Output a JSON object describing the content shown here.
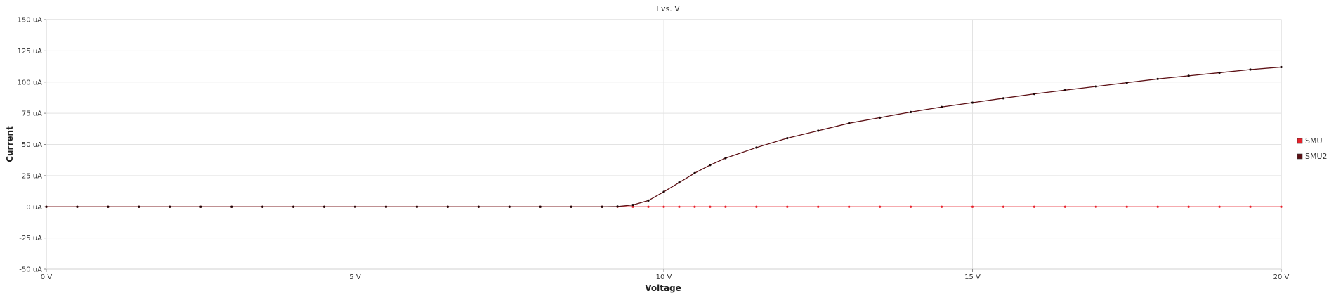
{
  "chart_data": {
    "type": "line",
    "title": "I vs. V",
    "xlabel": "Voltage",
    "ylabel": "Current",
    "xlim": [
      0,
      20
    ],
    "ylim": [
      -50,
      150
    ],
    "x_ticks": [
      {
        "value": 0,
        "label": "0 V"
      },
      {
        "value": 5,
        "label": "5 V"
      },
      {
        "value": 10,
        "label": "10 V"
      },
      {
        "value": 15,
        "label": "15 V"
      },
      {
        "value": 20,
        "label": "20 V"
      }
    ],
    "y_ticks": [
      {
        "value": 150,
        "label": "150 uA"
      },
      {
        "value": 125,
        "label": "125 uA"
      },
      {
        "value": 100,
        "label": "100 uA"
      },
      {
        "value": 75,
        "label": "75 uA"
      },
      {
        "value": 50,
        "label": "50 uA"
      },
      {
        "value": 25,
        "label": "25 uA"
      },
      {
        "value": 0,
        "label": "0 uA"
      },
      {
        "value": -25,
        "label": "-25 uA"
      },
      {
        "value": -50,
        "label": "-50 uA"
      }
    ],
    "grid": true,
    "legend_position": "right",
    "x": [
      0,
      0.5,
      1,
      1.5,
      2,
      2.5,
      3,
      3.5,
      4,
      4.5,
      5,
      5.5,
      6,
      6.5,
      7,
      7.5,
      8,
      8.5,
      9,
      9.25,
      9.5,
      9.75,
      10,
      10.25,
      10.5,
      10.75,
      11,
      11.5,
      12,
      12.5,
      13,
      13.5,
      14,
      14.5,
      15,
      15.5,
      16,
      16.5,
      17,
      17.5,
      18,
      18.5,
      19,
      19.5,
      20
    ],
    "series": [
      {
        "name": "SMU",
        "color": "#e8202a",
        "values": [
          0,
          0,
          0,
          0,
          0,
          0,
          0,
          0,
          0,
          0,
          0,
          0,
          0,
          0,
          0,
          0,
          0,
          0,
          0,
          0,
          0,
          0,
          0,
          0,
          0,
          0,
          0,
          0,
          0,
          0,
          0,
          0,
          0,
          0,
          0,
          0,
          0,
          0,
          0,
          0,
          0,
          0,
          0,
          0,
          0
        ]
      },
      {
        "name": "SMU2",
        "color": "#5c0f14",
        "values": [
          0,
          0,
          0,
          0,
          0,
          0,
          0,
          0,
          0,
          0,
          0,
          0,
          0,
          0,
          0,
          0,
          0,
          0,
          0,
          0.2,
          1.5,
          5,
          12,
          19.5,
          27,
          33.5,
          39,
          47.5,
          55,
          61,
          67,
          71.5,
          76,
          80,
          83.5,
          87,
          90.5,
          93.5,
          96.5,
          99.5,
          102.5,
          105,
          107.5,
          110,
          112
        ]
      }
    ]
  }
}
